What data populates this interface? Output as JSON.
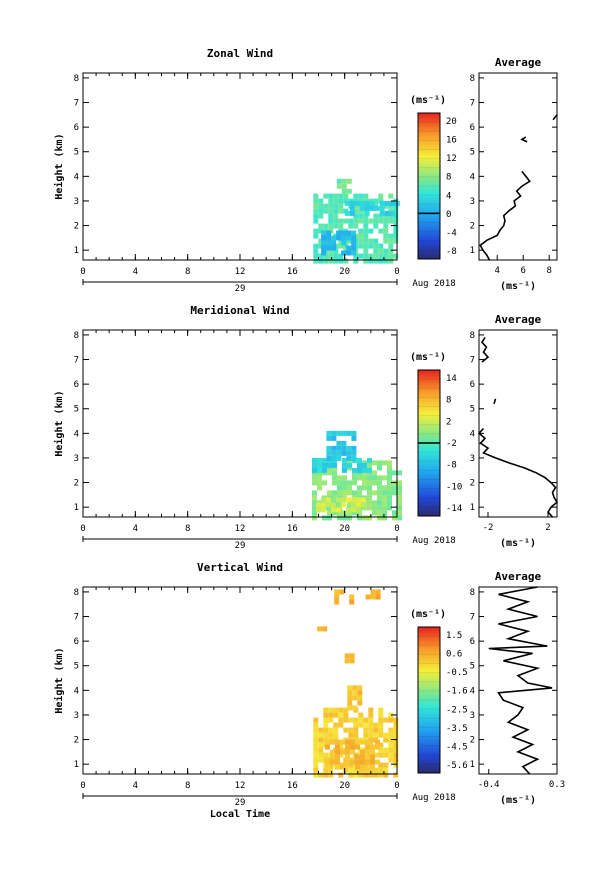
{
  "chart_data": [
    {
      "type": "heatmap",
      "title": "Zonal Wind",
      "ylabel": "Height (km)",
      "xlabel": "",
      "x_ticks": [
        "0",
        "4",
        "8",
        "12",
        "16",
        "20",
        "0"
      ],
      "y_ticks": [
        "1",
        "2",
        "3",
        "4",
        "5",
        "6",
        "7",
        "8"
      ],
      "xlim": [
        0,
        24
      ],
      "ylim": [
        0.6,
        8.2
      ],
      "date_day": "29",
      "date_label": "Aug 2018",
      "colorbar": {
        "unit": "(ms⁻¹)",
        "ticks": [
          "20",
          "16",
          "12",
          "8",
          "4",
          "0",
          "-4",
          "-8"
        ],
        "min": -10,
        "max": 22,
        "zero_line": 0
      },
      "cells": [
        {
          "x": [
            17.6,
            24
          ],
          "y": [
            0.6,
            3.3
          ],
          "value": 6
        },
        {
          "x": [
            20,
            24
          ],
          "y": [
            2.5,
            3.0
          ],
          "value": 3
        },
        {
          "x": [
            19.4,
            20.2
          ],
          "y": [
            3.3,
            3.9
          ],
          "value": 7
        },
        {
          "x": [
            18.2,
            20.5
          ],
          "y": [
            0.8,
            1.8
          ],
          "value": 1
        }
      ],
      "profile": {
        "title": "Average",
        "xlabel": "(ms⁻¹)",
        "x_ticks": [
          "4",
          "6",
          "8"
        ],
        "xlim": [
          2.6,
          8.6
        ],
        "height": [
          0.6,
          0.8,
          1.0,
          1.2,
          1.4,
          1.6,
          1.8,
          2.0,
          2.2,
          2.4,
          2.6,
          2.8,
          3.0,
          3.2,
          3.4,
          3.6,
          3.8,
          4.0,
          4.2,
          5.4,
          5.5,
          5.6,
          6.3,
          6.5
        ],
        "value": [
          3.4,
          3.2,
          2.9,
          2.7,
          3.2,
          4.0,
          4.2,
          4.5,
          4.6,
          4.5,
          4.9,
          5.4,
          5.3,
          5.8,
          5.5,
          5.9,
          6.5,
          6.2,
          5.9,
          6.3,
          5.9,
          6.2,
          8.3,
          8.6
        ]
      }
    },
    {
      "type": "heatmap",
      "title": "Meridional Wind",
      "ylabel": "Height (km)",
      "xlabel": "",
      "x_ticks": [
        "0",
        "4",
        "8",
        "12",
        "16",
        "20",
        "0"
      ],
      "y_ticks": [
        "1",
        "2",
        "3",
        "4",
        "5",
        "6",
        "7",
        "8"
      ],
      "xlim": [
        0,
        24
      ],
      "ylim": [
        0.6,
        8.2
      ],
      "date_day": "29",
      "date_label": "Aug 2018",
      "colorbar": {
        "unit": "(ms⁻¹)",
        "ticks": [
          "14",
          "8",
          "2",
          "-2",
          "-8",
          "-10",
          "-14"
        ],
        "min": -16,
        "max": 16,
        "zero_line": 0
      },
      "cells": [
        {
          "x": [
            17.5,
            24
          ],
          "y": [
            0.6,
            2.9
          ],
          "value": 2
        },
        {
          "x": [
            17.5,
            22
          ],
          "y": [
            2.5,
            3.0
          ],
          "value": -3
        },
        {
          "x": [
            18.6,
            20.8
          ],
          "y": [
            3.0,
            4.1
          ],
          "value": -4
        },
        {
          "x": [
            17.8,
            21.5
          ],
          "y": [
            0.8,
            1.4
          ],
          "value": 5
        }
      ],
      "profile": {
        "title": "Average",
        "xlabel": "(ms⁻¹)",
        "x_ticks": [
          "-2",
          "2"
        ],
        "xlim": [
          -2.6,
          2.6
        ],
        "height": [
          0.6,
          0.8,
          1.0,
          1.2,
          1.4,
          1.6,
          1.8,
          2.0,
          2.2,
          2.4,
          2.6,
          2.8,
          3.0,
          3.2,
          3.4,
          3.6,
          3.8,
          4.0,
          4.2,
          5.2,
          5.4,
          6.9,
          7.1,
          7.3,
          7.5,
          7.7,
          7.9
        ],
        "value": [
          2.3,
          2.0,
          2.2,
          2.6,
          2.4,
          2.3,
          2.5,
          2.2,
          1.8,
          1.2,
          0.4,
          -0.6,
          -1.5,
          -2.3,
          -2.0,
          -2.5,
          -2.2,
          -2.6,
          -2.3,
          -1.6,
          -1.5,
          -2.4,
          -2.0,
          -2.3,
          -2.1,
          -2.4,
          -2.2
        ]
      }
    },
    {
      "type": "heatmap",
      "title": "Vertical Wind",
      "ylabel": "Height (km)",
      "xlabel": "Local Time",
      "x_ticks": [
        "0",
        "4",
        "8",
        "12",
        "16",
        "20",
        "0"
      ],
      "y_ticks": [
        "1",
        "2",
        "3",
        "4",
        "5",
        "6",
        "7",
        "8"
      ],
      "xlim": [
        0,
        24
      ],
      "ylim": [
        0.6,
        8.2
      ],
      "date_day": "29",
      "date_label": "Aug 2018",
      "colorbar": {
        "unit": "(ms⁻¹)",
        "ticks": [
          "1.5",
          "0.6",
          "-0.5",
          "-1.6",
          "-2.5",
          "-3.5",
          "-4.5",
          "-5.6"
        ],
        "min": -6,
        "max": 2,
        "zero_line": null
      },
      "cells": [
        {
          "x": [
            17.6,
            24
          ],
          "y": [
            0.6,
            3.3
          ],
          "value": 0.0
        },
        {
          "x": [
            18.5,
            22.5
          ],
          "y": [
            0.8,
            2.0
          ],
          "value": 0.3
        },
        {
          "x": [
            20.2,
            21.0
          ],
          "y": [
            3.3,
            4.2
          ],
          "value": 0.2
        },
        {
          "x": [
            19.2,
            20.5
          ],
          "y": [
            7.5,
            8.1
          ],
          "value": 0.4
        },
        {
          "x": [
            21.6,
            22.6
          ],
          "y": [
            7.7,
            8.1
          ],
          "value": 0.5
        },
        {
          "x": [
            17.9,
            18.3
          ],
          "y": [
            6.4,
            6.6
          ],
          "value": 0.3
        },
        {
          "x": [
            20.0,
            20.6
          ],
          "y": [
            5.2,
            5.5
          ],
          "value": 0.2
        }
      ],
      "profile": {
        "title": "Average",
        "xlabel": "(ms⁻¹)",
        "x_ticks": [
          "-0.4",
          "0.3"
        ],
        "xlim": [
          -0.5,
          0.3
        ],
        "height": [
          0.6,
          0.9,
          1.2,
          1.5,
          1.8,
          2.1,
          2.4,
          2.7,
          3.0,
          3.3,
          3.6,
          3.9,
          4.1,
          4.3,
          4.6,
          4.9,
          5.2,
          5.5,
          5.7,
          5.8,
          6.1,
          6.4,
          6.7,
          7.0,
          7.3,
          7.6,
          7.9,
          8.2
        ],
        "value": [
          0.02,
          -0.05,
          0.1,
          -0.1,
          0.05,
          -0.15,
          0.0,
          -0.2,
          -0.1,
          -0.05,
          -0.25,
          -0.3,
          0.25,
          0.0,
          -0.1,
          0.1,
          -0.25,
          0.05,
          -0.4,
          0.2,
          -0.2,
          0.0,
          -0.3,
          0.1,
          -0.2,
          0.0,
          -0.3,
          0.1
        ]
      }
    }
  ]
}
